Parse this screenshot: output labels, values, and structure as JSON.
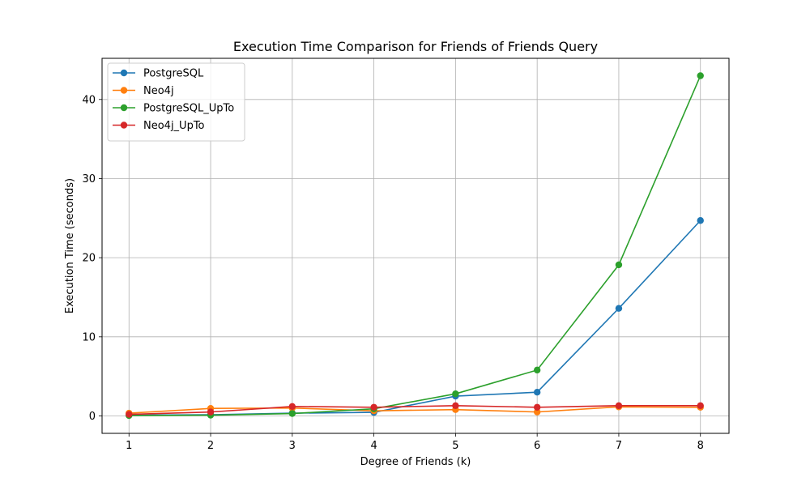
{
  "chart_data": {
    "type": "line",
    "title": "Execution Time Comparison for Friends of Friends Query",
    "xlabel": "Degree of Friends (k)",
    "ylabel": "Execution Time (seconds)",
    "x": [
      1,
      2,
      3,
      4,
      5,
      6,
      7,
      8
    ],
    "xlim": [
      0.67,
      8.35
    ],
    "ylim": [
      -2.2,
      45.2
    ],
    "xticks": [
      1,
      2,
      3,
      4,
      5,
      6,
      7,
      8
    ],
    "yticks": [
      0,
      10,
      20,
      30,
      40
    ],
    "grid": true,
    "legend_position": "top-left",
    "series": [
      {
        "name": "PostgreSQL",
        "color": "#1f77b4",
        "values": [
          0.1,
          0.15,
          0.35,
          0.45,
          2.5,
          3.0,
          13.6,
          24.7
        ]
      },
      {
        "name": "Neo4j",
        "color": "#ff7f0e",
        "values": [
          0.35,
          0.95,
          1.0,
          0.65,
          0.8,
          0.5,
          1.15,
          1.1
        ]
      },
      {
        "name": "PostgreSQL_UpTo",
        "color": "#2ca02c",
        "values": [
          0.05,
          0.1,
          0.3,
          0.9,
          2.8,
          5.8,
          19.1,
          43.0
        ]
      },
      {
        "name": "Neo4j_UpTo",
        "color": "#d62728",
        "values": [
          0.2,
          0.5,
          1.2,
          1.1,
          1.3,
          1.1,
          1.3,
          1.3
        ]
      }
    ]
  }
}
